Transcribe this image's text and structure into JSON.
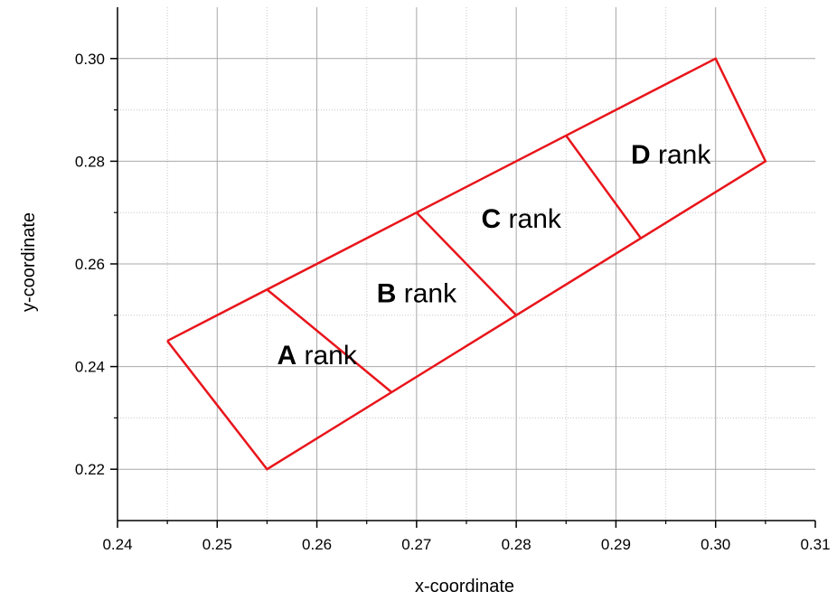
{
  "chart_data": {
    "type": "line",
    "title": "",
    "xlabel": "x-coordinate",
    "ylabel": "y-coordinate",
    "xlim": [
      0.24,
      0.31
    ],
    "ylim": [
      0.21,
      0.31
    ],
    "xticks": [
      "0.24",
      "0.25",
      "0.26",
      "0.27",
      "0.28",
      "0.29",
      "0.30",
      "0.31"
    ],
    "yticks": [
      "0.22",
      "0.24",
      "0.26",
      "0.28",
      "0.30"
    ],
    "grid": true,
    "line_color": "#e8151b",
    "outline": [
      [
        0.245,
        0.245
      ],
      [
        0.255,
        0.22
      ],
      [
        0.305,
        0.28
      ],
      [
        0.3,
        0.3
      ],
      [
        0.245,
        0.245
      ]
    ],
    "dividers": [
      [
        [
          0.255,
          0.255
        ],
        [
          0.2675,
          0.235
        ]
      ],
      [
        [
          0.27,
          0.27
        ],
        [
          0.28,
          0.25
        ]
      ],
      [
        [
          0.285,
          0.285
        ],
        [
          0.2925,
          0.265
        ]
      ]
    ],
    "regions": [
      {
        "letter": "A",
        "word": "rank",
        "x": 0.256,
        "y": 0.2405
      },
      {
        "letter": "B",
        "word": "rank",
        "x": 0.266,
        "y": 0.2525
      },
      {
        "letter": "C",
        "word": "rank",
        "x": 0.2765,
        "y": 0.267
      },
      {
        "letter": "D",
        "word": "rank",
        "x": 0.2915,
        "y": 0.2795
      }
    ]
  }
}
